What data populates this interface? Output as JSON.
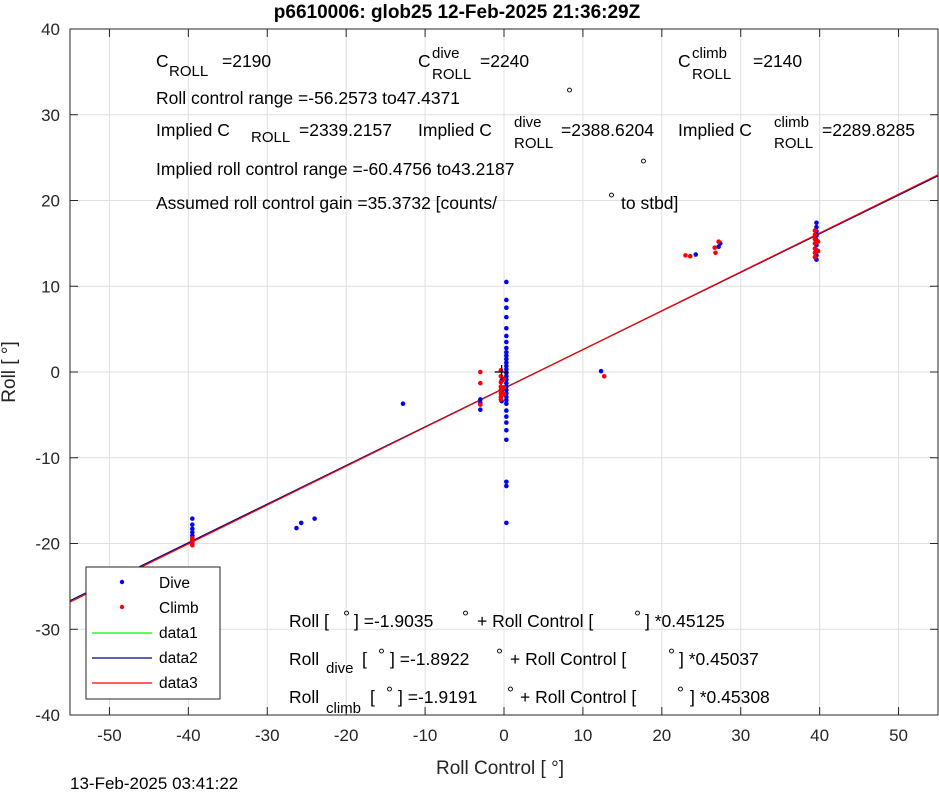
{
  "chart_data": {
    "type": "scatter",
    "title": "p6610006: glob25 12-Feb-2025 21:36:29Z",
    "xlabel": "Roll Control [   °]",
    "ylabel": "Roll [  °]",
    "xlim": [
      -55,
      55
    ],
    "ylim": [
      -40,
      40
    ],
    "xticks": [
      -50,
      -40,
      -30,
      -20,
      -10,
      0,
      10,
      20,
      30,
      40,
      50
    ],
    "yticks": [
      -40,
      -30,
      -20,
      -10,
      0,
      10,
      20,
      30,
      40
    ],
    "grid": true,
    "legend_position": "bottom-left",
    "series": [
      {
        "name": "Dive",
        "kind": "points",
        "color": "#0000ff",
        "points": [
          [
            -39.5,
            -17.1
          ],
          [
            -39.5,
            -17.8
          ],
          [
            -39.5,
            -18.3
          ],
          [
            -39.5,
            -18.7
          ],
          [
            -39.5,
            -19.1
          ],
          [
            -39.5,
            -19.4
          ],
          [
            -39.5,
            -19.7
          ],
          [
            -39.5,
            -19.9
          ],
          [
            -39.5,
            -20.1
          ],
          [
            -26.3,
            -18.2
          ],
          [
            -25.7,
            -17.6
          ],
          [
            -24,
            -17.1
          ],
          [
            -12.8,
            -3.7
          ],
          [
            -3,
            -3.2
          ],
          [
            -3,
            -3.6
          ],
          [
            -3,
            -4.4
          ],
          [
            0.3,
            10.5
          ],
          [
            0.3,
            8.4
          ],
          [
            0.3,
            7.5
          ],
          [
            0.3,
            6.4
          ],
          [
            0.3,
            5.1
          ],
          [
            0.3,
            4.2
          ],
          [
            0.3,
            3.5
          ],
          [
            0.3,
            2.8
          ],
          [
            0.3,
            2.3
          ],
          [
            0.3,
            1.9
          ],
          [
            0.3,
            1.5
          ],
          [
            0.3,
            1.1
          ],
          [
            0.3,
            0.7
          ],
          [
            0.3,
            0.3
          ],
          [
            0.3,
            -0.1
          ],
          [
            0.3,
            -0.5
          ],
          [
            0.3,
            -0.9
          ],
          [
            0.3,
            -1.3
          ],
          [
            0.3,
            -1.7
          ],
          [
            0.3,
            -2.1
          ],
          [
            0.3,
            -2.5
          ],
          [
            0.3,
            -2.9
          ],
          [
            0.3,
            -3.3
          ],
          [
            0.3,
            -3.7
          ],
          [
            0.3,
            -4.5
          ],
          [
            0.3,
            -5.2
          ],
          [
            0.3,
            -5.9
          ],
          [
            0.3,
            -6.8
          ],
          [
            0.3,
            -7.9
          ],
          [
            0.3,
            -12.8
          ],
          [
            0.3,
            -13.3
          ],
          [
            0.3,
            -17.6
          ],
          [
            -0.3,
            -1.0
          ],
          [
            -0.3,
            -2.2
          ],
          [
            -0.3,
            -3.4
          ],
          [
            12.3,
            0.1
          ],
          [
            24.3,
            13.7
          ],
          [
            27.2,
            14.6
          ],
          [
            27.4,
            15.0
          ],
          [
            39.6,
            17.4
          ],
          [
            39.6,
            16.9
          ],
          [
            39.6,
            16.4
          ],
          [
            39.6,
            15.9
          ],
          [
            39.6,
            15.4
          ],
          [
            39.6,
            14.8
          ],
          [
            39.6,
            14.2
          ],
          [
            39.6,
            13.6
          ],
          [
            39.6,
            13.1
          ]
        ]
      },
      {
        "name": "Climb",
        "kind": "points",
        "color": "#ff0000",
        "points": [
          [
            -39.5,
            -19.4
          ],
          [
            -39.5,
            -19.7
          ],
          [
            -39.5,
            -20.0
          ],
          [
            -39.5,
            -20.2
          ],
          [
            -3,
            0.0
          ],
          [
            -3,
            -1.3
          ],
          [
            -3,
            -3.8
          ],
          [
            -0.4,
            0.2
          ],
          [
            -0.4,
            -0.5
          ],
          [
            -0.4,
            -1.2
          ],
          [
            -0.4,
            -1.7
          ],
          [
            -0.4,
            -2.1
          ],
          [
            -0.4,
            -2.5
          ],
          [
            -0.4,
            -2.9
          ],
          [
            -0.4,
            -3.2
          ],
          [
            0.0,
            -0.8
          ],
          [
            0.0,
            -1.8
          ],
          [
            0.0,
            -2.6
          ],
          [
            12.7,
            -0.5
          ],
          [
            23,
            13.6
          ],
          [
            23.6,
            13.5
          ],
          [
            26.7,
            14.5
          ],
          [
            26.8,
            13.9
          ],
          [
            27.2,
            15.2
          ],
          [
            39.4,
            16.5
          ],
          [
            39.4,
            16.0
          ],
          [
            39.4,
            15.5
          ],
          [
            39.4,
            15.0
          ],
          [
            39.4,
            14.4
          ],
          [
            39.4,
            13.9
          ],
          [
            39.4,
            13.4
          ],
          [
            39.8,
            14.1
          ],
          [
            39.8,
            15.2
          ]
        ]
      },
      {
        "name": "data1",
        "kind": "line",
        "color": "#00ff00",
        "intercept": -1.9035,
        "slope": 0.45125
      },
      {
        "name": "data2",
        "kind": "line",
        "color": "#00008b",
        "intercept": -1.8922,
        "slope": 0.45037
      },
      {
        "name": "data3",
        "kind": "line",
        "color": "#ff0000",
        "intercept": -1.9191,
        "slope": 0.45308
      }
    ],
    "markers": [
      {
        "kind": "plus",
        "color": "#000000",
        "x": -0.3,
        "y": 0
      }
    ],
    "annotations": {
      "c_roll": {
        "main": "C",
        "sub": "ROLL",
        "value": "=2190"
      },
      "c_roll_dive": {
        "main": "C",
        "sup": "dive",
        "sub": "ROLL",
        "value": "=2240"
      },
      "c_roll_climb": {
        "main": "C",
        "sup": "climb",
        "sub": "ROLL",
        "value": "=2140"
      },
      "roll_control_range": "Roll control range =-56.2573 to47.4371",
      "implied_c_roll": {
        "prefix": "Implied C",
        "sub": "ROLL",
        "value": "=2339.2157"
      },
      "implied_c_roll_dive": {
        "prefix": "Implied C",
        "sup": "dive",
        "sub": "ROLL",
        "value": "=2388.6204"
      },
      "implied_c_roll_climb": {
        "prefix": "Implied C",
        "sup": "climb",
        "sub": "ROLL",
        "value": "=2289.8285"
      },
      "implied_range": "Implied roll control range =-60.4756 to43.2187",
      "gain": "Assumed roll control gain =35.3732 [counts/",
      "gain_suffix": "to stbd]",
      "degree_symbol": "°",
      "fit_all": {
        "a": "Roll [  ",
        "b": "] =-1.9035",
        "c": "+ Roll Control [",
        "d": "] *0.45125"
      },
      "fit_dive": {
        "a": "Roll",
        "sub": "dive",
        "b": " [  ",
        "c": "] =-1.8922",
        "d": "+ Roll Control [",
        "e": "] *0.45037"
      },
      "fit_climb": {
        "a": "Roll",
        "sub": "climb",
        "b": " [  ",
        "c": "] =-1.9191",
        "d": "+ Roll Control [",
        "e": "] *0.45308"
      }
    },
    "timestamp": "13-Feb-2025 03:41:22"
  }
}
